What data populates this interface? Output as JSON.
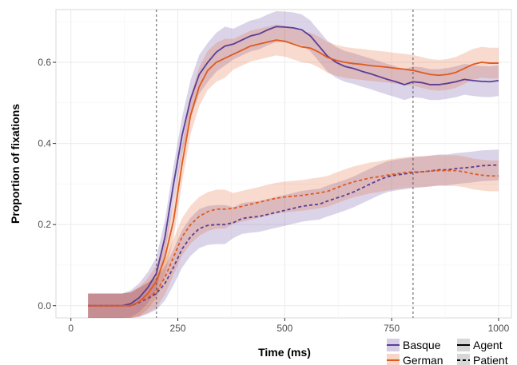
{
  "chart_data": {
    "type": "line",
    "xlabel": "Time (ms)",
    "ylabel": "Proportion of fixations",
    "xlim": [
      -35,
      1030
    ],
    "ylim": [
      -0.03,
      0.73
    ],
    "xticks": [
      0,
      250,
      500,
      750,
      1000
    ],
    "xtick_labels": [
      "0",
      "250",
      "500",
      "750",
      "1000"
    ],
    "yticks": [
      0.0,
      0.2,
      0.4,
      0.6
    ],
    "ytick_labels": [
      "0.0",
      "0.2",
      "0.4",
      "0.6"
    ],
    "grid": true,
    "vlines": [
      200,
      800
    ],
    "x": [
      40,
      80,
      120,
      140,
      160,
      180,
      200,
      220,
      240,
      260,
      280,
      300,
      320,
      340,
      360,
      380,
      400,
      420,
      440,
      460,
      480,
      500,
      520,
      540,
      560,
      580,
      600,
      620,
      640,
      660,
      680,
      700,
      720,
      740,
      760,
      780,
      800,
      820,
      840,
      860,
      880,
      900,
      920,
      940,
      960,
      980,
      1000
    ],
    "series": [
      {
        "name": "Basque",
        "role": "Agent",
        "color": "#5b3d96",
        "dash": "solid",
        "values": [
          0.0,
          0.0,
          0.0,
          0.005,
          0.02,
          0.045,
          0.08,
          0.17,
          0.3,
          0.42,
          0.51,
          0.57,
          0.6,
          0.625,
          0.64,
          0.645,
          0.655,
          0.665,
          0.67,
          0.68,
          0.688,
          0.687,
          0.685,
          0.68,
          0.665,
          0.64,
          0.615,
          0.6,
          0.59,
          0.585,
          0.578,
          0.572,
          0.565,
          0.558,
          0.552,
          0.545,
          0.552,
          0.55,
          0.545,
          0.545,
          0.548,
          0.552,
          0.558,
          0.555,
          0.553,
          0.552,
          0.555
        ],
        "band": [
          0.03,
          0.03,
          0.03,
          0.033,
          0.036,
          0.038,
          0.04,
          0.042,
          0.044,
          0.046,
          0.047,
          0.048,
          0.048,
          0.048,
          0.048,
          0.038,
          0.038,
          0.038,
          0.038,
          0.038,
          0.038,
          0.038,
          0.038,
          0.038,
          0.038,
          0.038,
          0.038,
          0.038,
          0.038,
          0.038,
          0.038,
          0.038,
          0.038,
          0.038,
          0.038,
          0.038,
          0.038,
          0.038,
          0.038,
          0.038,
          0.038,
          0.038,
          0.038,
          0.038,
          0.038,
          0.038,
          0.038
        ]
      },
      {
        "name": "German",
        "role": "Agent",
        "color": "#e05a1e",
        "dash": "solid",
        "values": [
          0.0,
          0.0,
          0.0,
          0.0,
          0.01,
          0.03,
          0.06,
          0.12,
          0.21,
          0.35,
          0.47,
          0.54,
          0.58,
          0.6,
          0.61,
          0.62,
          0.63,
          0.64,
          0.645,
          0.65,
          0.655,
          0.652,
          0.645,
          0.638,
          0.635,
          0.625,
          0.612,
          0.605,
          0.6,
          0.597,
          0.595,
          0.592,
          0.59,
          0.588,
          0.585,
          0.583,
          0.58,
          0.575,
          0.57,
          0.568,
          0.57,
          0.575,
          0.585,
          0.595,
          0.6,
          0.598,
          0.598
        ],
        "band": [
          0.03,
          0.03,
          0.03,
          0.033,
          0.036,
          0.038,
          0.04,
          0.042,
          0.044,
          0.046,
          0.047,
          0.048,
          0.048,
          0.048,
          0.048,
          0.038,
          0.038,
          0.038,
          0.038,
          0.038,
          0.038,
          0.038,
          0.038,
          0.038,
          0.038,
          0.038,
          0.038,
          0.038,
          0.038,
          0.038,
          0.038,
          0.038,
          0.038,
          0.038,
          0.038,
          0.038,
          0.038,
          0.038,
          0.038,
          0.038,
          0.038,
          0.038,
          0.038,
          0.038,
          0.038,
          0.038,
          0.038
        ]
      },
      {
        "name": "Basque",
        "role": "Patient",
        "color": "#5b3d96",
        "dash": "dashed",
        "values": [
          0.0,
          0.0,
          0.0,
          0.0,
          0.008,
          0.018,
          0.03,
          0.055,
          0.095,
          0.14,
          0.17,
          0.19,
          0.198,
          0.2,
          0.2,
          0.205,
          0.215,
          0.218,
          0.22,
          0.225,
          0.23,
          0.235,
          0.24,
          0.245,
          0.248,
          0.25,
          0.258,
          0.265,
          0.272,
          0.28,
          0.29,
          0.3,
          0.31,
          0.318,
          0.322,
          0.325,
          0.328,
          0.33,
          0.332,
          0.335,
          0.335,
          0.338,
          0.34,
          0.342,
          0.345,
          0.346,
          0.347
        ],
        "band": [
          0.03,
          0.03,
          0.03,
          0.033,
          0.036,
          0.038,
          0.04,
          0.042,
          0.044,
          0.046,
          0.047,
          0.048,
          0.048,
          0.048,
          0.048,
          0.038,
          0.038,
          0.038,
          0.038,
          0.038,
          0.038,
          0.038,
          0.038,
          0.038,
          0.038,
          0.038,
          0.038,
          0.038,
          0.038,
          0.038,
          0.038,
          0.038,
          0.038,
          0.038,
          0.038,
          0.038,
          0.038,
          0.038,
          0.038,
          0.038,
          0.038,
          0.038,
          0.038,
          0.038,
          0.038,
          0.038,
          0.038
        ]
      },
      {
        "name": "German",
        "role": "Patient",
        "color": "#e05a1e",
        "dash": "dashed",
        "values": [
          0.0,
          0.0,
          0.0,
          0.0,
          0.01,
          0.02,
          0.035,
          0.07,
          0.12,
          0.17,
          0.2,
          0.22,
          0.232,
          0.238,
          0.238,
          0.24,
          0.245,
          0.25,
          0.255,
          0.26,
          0.265,
          0.268,
          0.27,
          0.272,
          0.275,
          0.278,
          0.282,
          0.29,
          0.298,
          0.305,
          0.31,
          0.315,
          0.318,
          0.322,
          0.325,
          0.328,
          0.33,
          0.33,
          0.332,
          0.333,
          0.333,
          0.333,
          0.33,
          0.325,
          0.322,
          0.32,
          0.32
        ],
        "band": [
          0.03,
          0.03,
          0.03,
          0.033,
          0.036,
          0.038,
          0.04,
          0.042,
          0.044,
          0.046,
          0.047,
          0.048,
          0.048,
          0.048,
          0.048,
          0.038,
          0.038,
          0.038,
          0.038,
          0.038,
          0.038,
          0.038,
          0.038,
          0.038,
          0.038,
          0.038,
          0.038,
          0.038,
          0.038,
          0.038,
          0.038,
          0.038,
          0.038,
          0.038,
          0.038,
          0.038,
          0.038,
          0.038,
          0.038,
          0.038,
          0.038,
          0.038,
          0.038,
          0.038,
          0.038,
          0.038,
          0.038
        ]
      }
    ],
    "legend": {
      "placement": "bottom-right",
      "colour_entries": [
        {
          "label": "Basque",
          "color": "#5b3d96"
        },
        {
          "label": "German",
          "color": "#e05a1e"
        }
      ],
      "linetype_entries": [
        {
          "label": "Agent",
          "dash": "solid"
        },
        {
          "label": "Patient",
          "dash": "dashed"
        }
      ]
    },
    "vline_color": "#555555",
    "grid_color": "#ebebeb",
    "axis_color": "#d9d9d9"
  }
}
